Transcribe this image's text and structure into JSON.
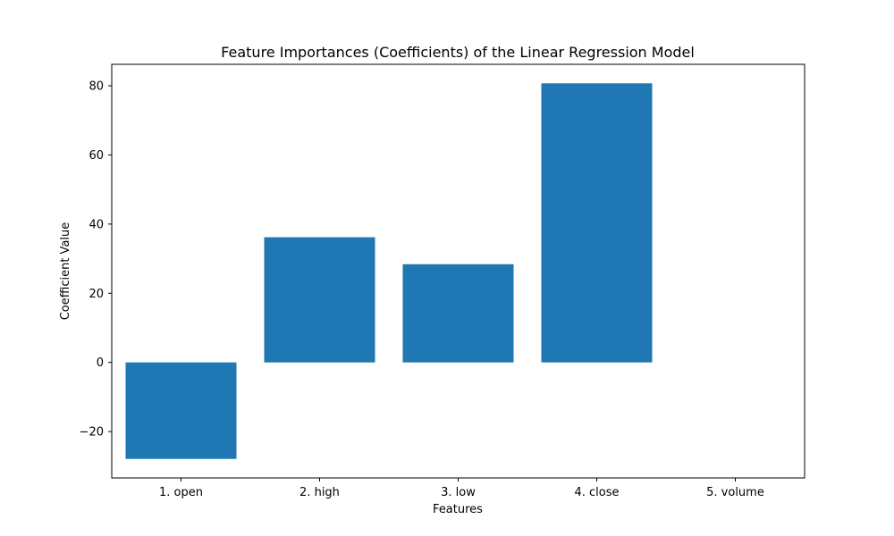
{
  "chart_data": {
    "type": "bar",
    "title": "Feature Importances (Coefficients) of the Linear Regression Model",
    "xlabel": "Features",
    "ylabel": "Coefficient Value",
    "categories": [
      "1. open",
      "2. high",
      "3. low",
      "4. close",
      "5. volume"
    ],
    "values": [
      -27.9,
      36.2,
      28.4,
      80.7,
      0.0
    ],
    "ylim": [
      -33.4,
      86.2
    ],
    "yticks": [
      -20,
      0,
      20,
      40,
      60,
      80
    ],
    "ytick_labels": [
      "−20",
      "0",
      "20",
      "40",
      "60",
      "80"
    ],
    "bar_color": "#1f77b4",
    "grid": false,
    "legend": false
  }
}
